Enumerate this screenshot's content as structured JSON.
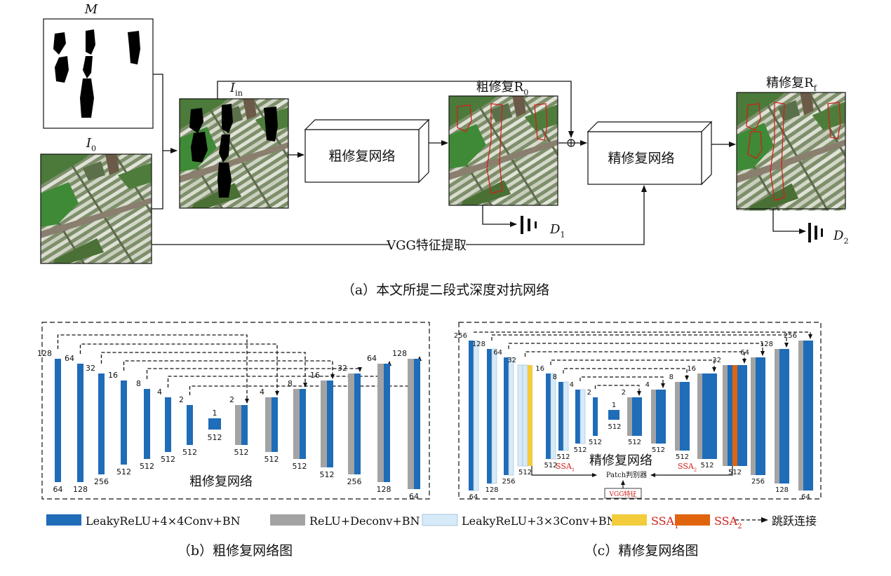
{
  "part_a": {
    "mask_label": "M",
    "input_label": "I",
    "input_sub": "0",
    "masked_label": "I",
    "masked_sub": "in",
    "coarse_net": "粗修复网络",
    "coarse_out_label": "粗修复R",
    "coarse_out_sub": "0",
    "fine_net": "精修复网络",
    "fine_out_label": "精修复R",
    "fine_out_sub": "f",
    "d1_label": "D",
    "d1_sub": "1",
    "d2_label": "D",
    "d2_sub": "2",
    "vgg_label": "VGG特征提取",
    "plus_symbol": "⊕",
    "caption": "（a）本文所提二段式深度对抗网络"
  },
  "part_b": {
    "title": "粗修复网络",
    "caption": "（b）粗修复网络图",
    "enc_top": [
      "128",
      "64",
      "32",
      "16",
      "8",
      "4",
      "2"
    ],
    "enc_bottom": [
      "64",
      "128",
      "256",
      "512",
      "512",
      "512",
      "512"
    ],
    "bottleneck_top": "1",
    "bottleneck_bottom": "512",
    "dec_top": [
      "2",
      "4",
      "8",
      "16",
      "32",
      "64",
      "128"
    ],
    "dec_bottom": [
      "512",
      "512",
      "512",
      "512",
      "256",
      "128",
      "64"
    ]
  },
  "part_c": {
    "title": "精修复网络",
    "caption": "（c）精修复网络图",
    "enc_top": [
      "256",
      "128",
      "64",
      "32",
      "16",
      "8",
      "4",
      "2"
    ],
    "enc_bottom": [
      "64",
      "128",
      "256",
      "512",
      "512",
      "512",
      "512",
      "512"
    ],
    "bottleneck_top": "1",
    "bottleneck_bottom": "512",
    "dec_top": [
      "2",
      "4",
      "8",
      "16",
      "32",
      "64",
      "128",
      "256"
    ],
    "dec_bottom": [
      "512",
      "512",
      "512",
      "512",
      "512",
      "256",
      "128",
      "64"
    ],
    "ssa1": "SSA",
    "ssa1_sub": "1",
    "ssa2": "SSA",
    "ssa2_sub": "2",
    "patch": "Patch判别器",
    "vgg": "VGG特征"
  },
  "legend": [
    {
      "label": "LeakyReLU+4×4Conv+BN",
      "color": "#1f6cb8"
    },
    {
      "label": "ReLU+Deconv+BN",
      "color": "#a3a3a3"
    },
    {
      "label": "LeakyReLU+3×3Conv+BN",
      "color": "#d7eaf8"
    },
    {
      "label": "SSA",
      "sub": "1",
      "color": "#f2cc3a"
    },
    {
      "label": "SSA",
      "sub": "2",
      "color": "#e0640e"
    }
  ],
  "legend_skip": "跳跃连接",
  "colors": {
    "conv": "#1f6cb8",
    "deconv": "#a3a3a3",
    "conv3": "#d7eaf8",
    "ssa1": "#f2cc3a",
    "ssa2": "#e0640e",
    "text_red": "#d0201a"
  }
}
